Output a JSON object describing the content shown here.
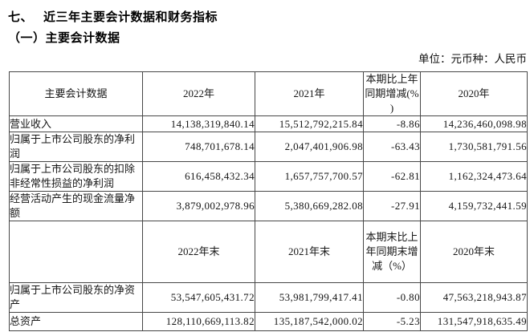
{
  "header": {
    "section_no": "七、",
    "section_title": "近三年主要会计数据和财务指标",
    "subsection_title": "（一）主要会计数据",
    "unit_note": "单位：元币种：人民币"
  },
  "table": {
    "columns_row1": [
      "主要会计数据",
      "2022年",
      "2021年",
      "本期比上年同期增减(%)",
      "2020年"
    ],
    "rows_annual": [
      {
        "label": "营业收入",
        "y2022": "14,138,319,840.14",
        "y2021": "15,512,792,215.84",
        "change": "-8.86",
        "y2020": "14,236,460,098.98"
      },
      {
        "label": "归属于上市公司股东的净利润",
        "y2022": "748,701,678.14",
        "y2021": "2,047,401,906.98",
        "change": "-63.43",
        "y2020": "1,730,581,791.56"
      },
      {
        "label": "归属于上市公司股东的扣除非经常性损益的净利润",
        "y2022": "616,458,432.34",
        "y2021": "1,657,757,700.57",
        "change": "-62.81",
        "y2020": "1,162,324,473.64"
      },
      {
        "label": "经营活动产生的现金流量净额",
        "y2022": "3,879,002,978.96",
        "y2021": "5,380,669,282.08",
        "change": "-27.91",
        "y2020": "4,159,732,441.59"
      }
    ],
    "columns_row2": [
      "",
      "2022年末",
      "2021年末",
      "本期末比上年同期末增减（%）",
      "2020年末"
    ],
    "rows_yearend": [
      {
        "label": "归属于上市公司股东的净资产",
        "y2022": "53,547,605,431.72",
        "y2021": "53,981,799,417.41",
        "change": "-0.80",
        "y2020": "47,563,218,943.87"
      },
      {
        "label": "总资产",
        "y2022": "128,110,669,113.82",
        "y2021": "135,187,542,000.02",
        "change": "-5.23",
        "y2020": "131,547,918,635.49"
      }
    ]
  }
}
